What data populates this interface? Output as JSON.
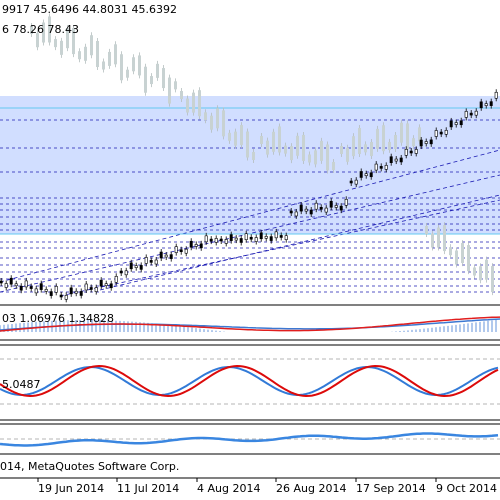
{
  "main_panel": {
    "ohlc_readout": "9917 45.6496 44.8031 45.6392",
    "ma_readout": "6 78.26 78.43"
  },
  "macd_panel": {
    "readout": "03 1.06976 1.34828"
  },
  "stoch_panel": {
    "readout": "5.0487"
  },
  "bottom_panel": {},
  "time_axis": {
    "labels": [
      "014, MetaQuotes Software Corp.",
      "19 Jun 2014",
      "11 Jul 2014",
      "4 Aug 2014",
      "26 Aug 2014",
      "17 Sep 2014",
      "9 Oct 2014"
    ]
  },
  "colors": {
    "band_fill": "#cfdcff",
    "grid_dash": "#1c1cb4",
    "cyan_line": "#63c8f0",
    "ghost_candle": "#c8d2d2",
    "macd_red": "#e11e1e",
    "macd_blue": "#3c78d2",
    "stoch_red": "#dc0a0a",
    "stoch_blue": "#327ad7",
    "bottom_blue": "#3a86e0",
    "separator": "#000000"
  }
}
